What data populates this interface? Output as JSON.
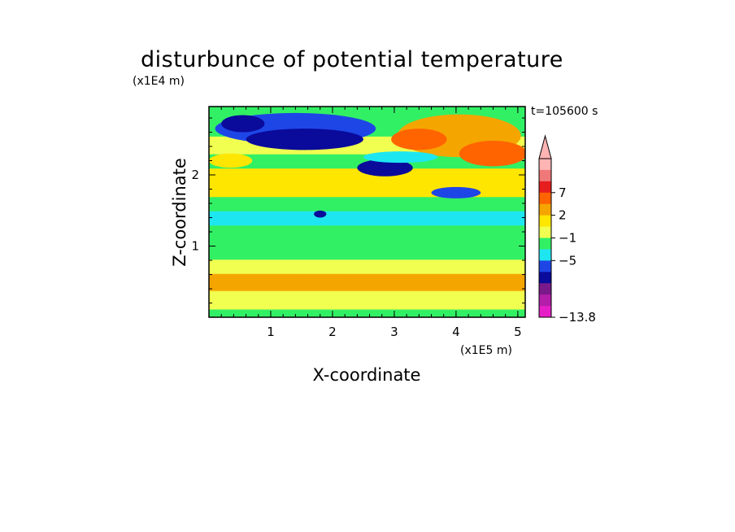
{
  "title": "disturbunce of potential temperature",
  "time_label": "t=105600 s",
  "chart_data": {
    "type": "heatmap",
    "title": "disturbunce of potential temperature",
    "xlabel": "X-coordinate",
    "ylabel": "Z-coordinate",
    "x_multiplier": "(x1E5 m)",
    "y_multiplier": "(x1E4 m)",
    "xlim": [
      0,
      5.12
    ],
    "ylim": [
      0,
      2.96
    ],
    "x_ticks": [
      1,
      2,
      3,
      4,
      5
    ],
    "y_ticks": [
      1,
      2
    ],
    "annotation": "t=105600 s",
    "colorbar": {
      "labels": [
        "7",
        "2",
        "−1",
        "−5",
        "−13.8"
      ],
      "label_values": [
        7,
        2,
        -1,
        -5,
        -13.8
      ],
      "min": -13.8,
      "extend": "max",
      "colors": [
        "#ffb4b4",
        "#f07878",
        "#e61e1e",
        "#ff6400",
        "#f5a500",
        "#ffe600",
        "#f0ff50",
        "#32f064",
        "#1ee6f0",
        "#1e46e6",
        "#0a0a9b",
        "#7a1a8a",
        "#b41eaa",
        "#e61ec8"
      ]
    },
    "bands": [
      {
        "z": [
          0.0,
          0.12
        ],
        "level": 7
      },
      {
        "z": [
          0.12,
          0.38
        ],
        "level": 6
      },
      {
        "z": [
          0.38,
          0.62
        ],
        "level": 4
      },
      {
        "z": [
          0.62,
          0.82
        ],
        "level": 6
      },
      {
        "z": [
          0.82,
          1.3
        ],
        "level": 7
      },
      {
        "z": [
          1.3,
          1.5
        ],
        "level": 8
      },
      {
        "z": [
          1.5,
          1.7
        ],
        "level": 7
      },
      {
        "z": [
          1.7,
          2.1
        ],
        "level": 5
      },
      {
        "z": [
          2.1,
          2.3
        ],
        "level": 7
      },
      {
        "z": [
          2.3,
          2.55
        ],
        "level": 6
      },
      {
        "z": [
          2.55,
          2.96
        ],
        "level": 7
      }
    ],
    "blobs": [
      {
        "cx": 1.4,
        "cz": 2.65,
        "rx": 1.3,
        "rz": 0.22,
        "level": 9
      },
      {
        "cx": 1.55,
        "cz": 2.5,
        "rx": 0.95,
        "rz": 0.15,
        "level": 10
      },
      {
        "cx": 0.55,
        "cz": 2.72,
        "rx": 0.35,
        "rz": 0.12,
        "level": 10
      },
      {
        "cx": 2.85,
        "cz": 2.1,
        "rx": 0.45,
        "rz": 0.12,
        "level": 10
      },
      {
        "cx": 4.0,
        "cz": 1.75,
        "rx": 0.4,
        "rz": 0.08,
        "level": 9
      },
      {
        "cx": 4.05,
        "cz": 2.55,
        "rx": 1.0,
        "rz": 0.3,
        "level": 4
      },
      {
        "cx": 4.6,
        "cz": 2.3,
        "rx": 0.55,
        "rz": 0.18,
        "level": 3
      },
      {
        "cx": 3.4,
        "cz": 2.5,
        "rx": 0.45,
        "rz": 0.15,
        "level": 3
      },
      {
        "cx": 0.35,
        "cz": 2.2,
        "rx": 0.35,
        "rz": 0.1,
        "level": 5
      },
      {
        "cx": 1.8,
        "cz": 1.45,
        "rx": 0.1,
        "rz": 0.05,
        "level": 10
      },
      {
        "cx": 3.1,
        "cz": 2.25,
        "rx": 0.6,
        "rz": 0.08,
        "level": 8
      }
    ]
  }
}
